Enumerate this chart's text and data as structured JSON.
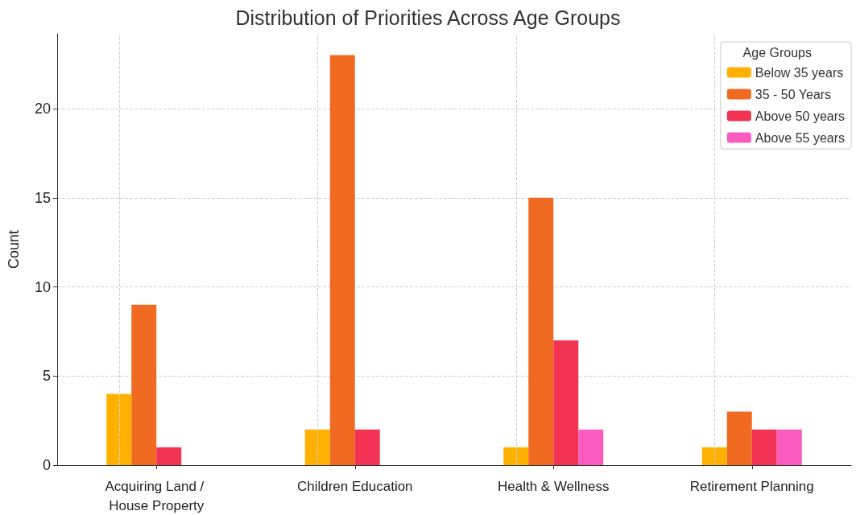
{
  "chart_data": {
    "type": "bar",
    "title": "Distribution of Priorities Across Age Groups",
    "ylabel": "Count",
    "legend_title": "Age Groups",
    "categories": [
      "Acquiring Land / House Property",
      "Children Education",
      "Health & Wellness",
      "Retirement Planning"
    ],
    "series": [
      {
        "name": "Below 35 years",
        "color": "#ffb000",
        "values": [
          4,
          2,
          1,
          1
        ]
      },
      {
        "name": "35 - 50 Years",
        "color": "#f06a22",
        "values": [
          9,
          23,
          15,
          3
        ]
      },
      {
        "name": "Above 50 years",
        "color": "#f23353",
        "values": [
          1,
          2,
          7,
          2
        ]
      },
      {
        "name": "Above 55 years",
        "color": "#f95bbf",
        "values": [
          0,
          0,
          2,
          2
        ]
      }
    ],
    "ylim": [
      0,
      24.2
    ],
    "yticks": [
      0,
      5,
      10,
      15,
      20
    ],
    "grid": true,
    "legend": "top right"
  }
}
